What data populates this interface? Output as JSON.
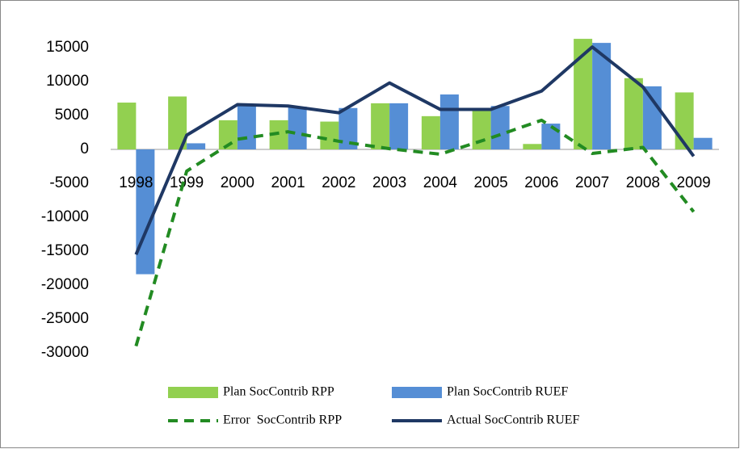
{
  "chart_data": {
    "type": "combo",
    "categories": [
      "1998",
      "1999",
      "2000",
      "2001",
      "2002",
      "2003",
      "2004",
      "2005",
      "2006",
      "2007",
      "2008",
      "2009"
    ],
    "series": [
      {
        "name": "Plan SocContrib RPP",
        "type": "bar",
        "color": "#92d050",
        "values": [
          6900,
          7800,
          4300,
          4300,
          4100,
          6800,
          4900,
          5700,
          800,
          16300,
          10500,
          8400
        ]
      },
      {
        "name": "Plan SocContrib RUEF",
        "type": "bar",
        "color": "#558ed5",
        "values": [
          -18400,
          900,
          6500,
          6300,
          6100,
          6800,
          8100,
          6400,
          3800,
          15700,
          9300,
          1700
        ]
      },
      {
        "name": "Error  SocContrib RPP",
        "type": "line",
        "dashed": true,
        "color": "#228b22",
        "values": [
          -29000,
          -3200,
          1500,
          2600,
          1200,
          100,
          -700,
          1700,
          4300,
          -600,
          300,
          -9200
        ]
      },
      {
        "name": "Actual SocContrib RUEF",
        "type": "line",
        "dashed": false,
        "color": "#1f3864",
        "values": [
          -15500,
          2100,
          6600,
          6400,
          5400,
          9800,
          5900,
          5900,
          8600,
          15100,
          9200,
          -1000
        ]
      }
    ],
    "ylim": [
      -30000,
      20000
    ],
    "yticks": [
      -30000,
      -25000,
      -20000,
      -15000,
      -10000,
      -5000,
      0,
      5000,
      10000,
      15000
    ],
    "legend": "bottom"
  }
}
